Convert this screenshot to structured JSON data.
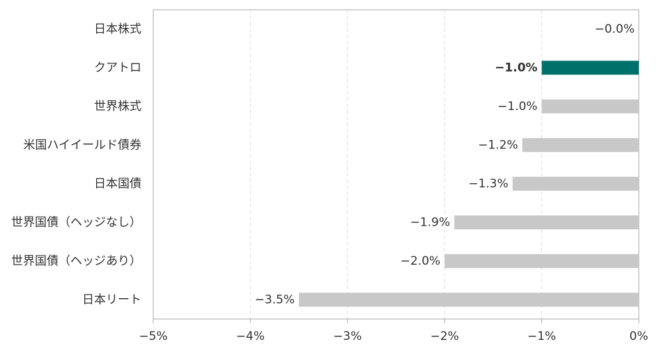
{
  "chart_data": {
    "type": "bar",
    "orientation": "horizontal",
    "categories": [
      "日本株式",
      "クアトロ",
      "世界株式",
      "米国ハイイールド債券",
      "日本国債",
      "世界国債（ヘッジなし）",
      "世界国債（ヘッジあり）",
      "日本リート"
    ],
    "values": [
      -0.0,
      -1.0,
      -1.0,
      -1.2,
      -1.3,
      -1.9,
      -2.0,
      -3.5
    ],
    "value_labels": [
      "−0.0%",
      "−1.0%",
      "−1.0%",
      "−1.2%",
      "−1.3%",
      "−1.9%",
      "−2.0%",
      "−3.5%"
    ],
    "colors": [
      "#c8c8c8",
      "#00706b",
      "#c8c8c8",
      "#c8c8c8",
      "#c8c8c8",
      "#c8c8c8",
      "#c8c8c8",
      "#c8c8c8"
    ],
    "label_colors": [
      "#333333",
      "#00706b",
      "#333333",
      "#333333",
      "#333333",
      "#333333",
      "#333333",
      "#333333"
    ],
    "xlim": [
      -5,
      0
    ],
    "xticks": [
      {
        "value": -5,
        "label": "−5%"
      },
      {
        "value": -4,
        "label": "−4%"
      },
      {
        "value": -3,
        "label": "−3%"
      },
      {
        "value": -2,
        "label": "−2%"
      },
      {
        "value": -1,
        "label": "−1%"
      },
      {
        "value": 0,
        "label": "0%"
      }
    ],
    "grid": true
  }
}
